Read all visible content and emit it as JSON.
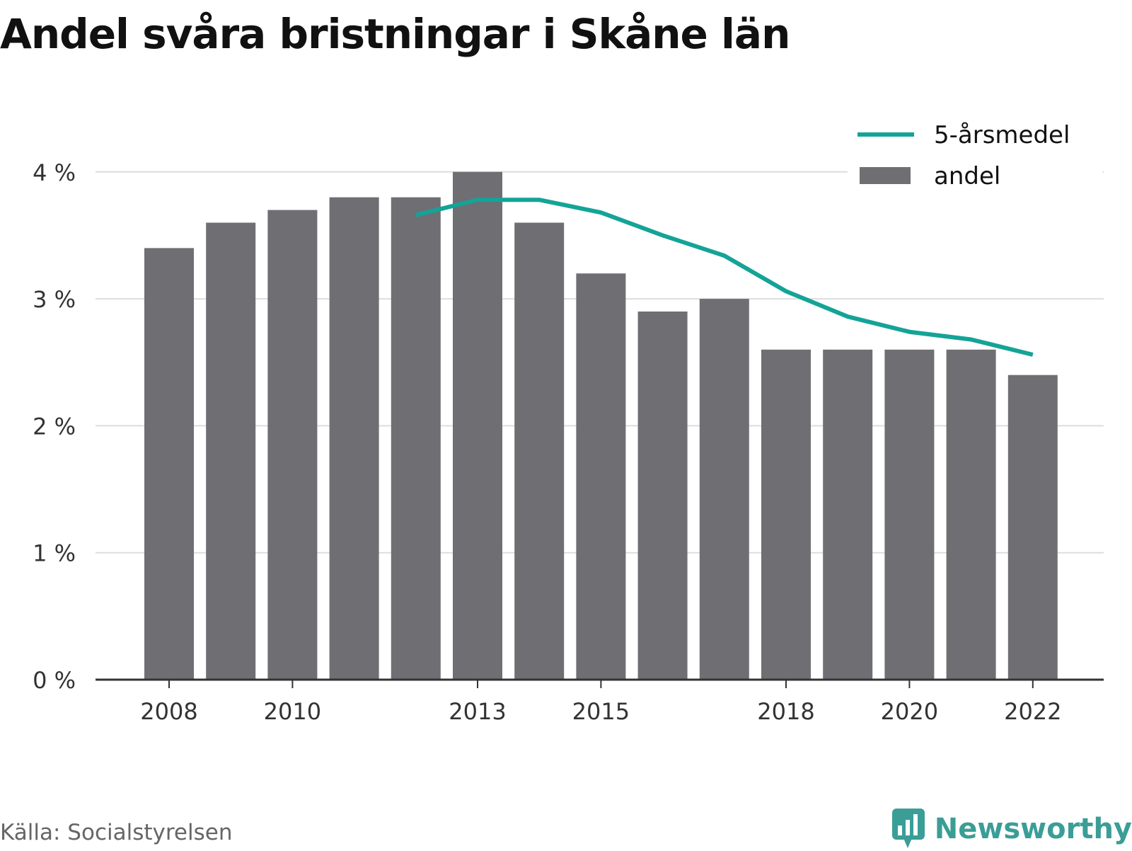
{
  "title": "Andel svåra bristningar i Skåne län",
  "source": "Källa: Socialstyrelsen",
  "brand": "Newsworthy",
  "colors": {
    "bar": "#6f6e73",
    "line": "#14a397",
    "grid": "#dddddd",
    "axis": "#333333",
    "brand": "#3a9e96"
  },
  "legend": {
    "placement": "top-right",
    "items": [
      {
        "label": "5-årsmedel",
        "kind": "line"
      },
      {
        "label": "andel",
        "kind": "bar"
      }
    ]
  },
  "chart_data": {
    "type": "bar",
    "title": "Andel svåra bristningar i Skåne län",
    "xlabel": "",
    "ylabel": "",
    "ylim": [
      0,
      4.4
    ],
    "grid": true,
    "y_ticks": [
      0,
      1,
      2,
      3,
      4
    ],
    "y_tick_labels": [
      "0 %",
      "1 %",
      "2 %",
      "3 %",
      "4 %"
    ],
    "x": [
      2008,
      2009,
      2010,
      2011,
      2012,
      2013,
      2014,
      2015,
      2016,
      2017,
      2018,
      2019,
      2020,
      2021,
      2022
    ],
    "x_ticks": [
      2008,
      2010,
      2013,
      2015,
      2018,
      2020,
      2022
    ],
    "x_tick_labels": [
      "2008",
      "2010",
      "2013",
      "2015",
      "2018",
      "2020",
      "2022"
    ],
    "series": [
      {
        "name": "andel",
        "type": "bar",
        "values": [
          3.4,
          3.6,
          3.7,
          3.8,
          3.8,
          4.0,
          3.6,
          3.2,
          2.9,
          3.0,
          2.6,
          2.6,
          2.6,
          2.6,
          2.4
        ]
      },
      {
        "name": "5-årsmedel",
        "type": "line",
        "values": [
          null,
          null,
          null,
          null,
          3.66,
          3.78,
          3.78,
          3.68,
          3.5,
          3.34,
          3.06,
          2.86,
          2.74,
          2.68,
          2.56
        ]
      }
    ]
  }
}
